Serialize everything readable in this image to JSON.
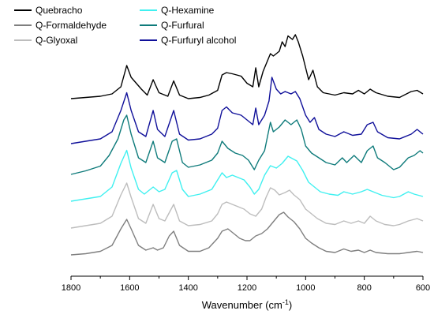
{
  "chart_data": {
    "type": "line",
    "title": "",
    "xlabel": "Wavenumber (cm",
    "xlabel_superscript": "-1",
    "xlabel_suffix": ")",
    "ylabel": "",
    "xlim": [
      1800,
      600
    ],
    "x_reversed": true,
    "grid": false,
    "legend": "top-left",
    "x_ticks": [
      1800,
      1600,
      1400,
      1200,
      1000,
      800,
      600
    ],
    "series": [
      {
        "name": "Quebracho",
        "color": "#000000",
        "offset": 0.0,
        "points": [
          [
            1800,
            0.02
          ],
          [
            1750,
            0.03
          ],
          [
            1700,
            0.04
          ],
          [
            1660,
            0.06
          ],
          [
            1630,
            0.12
          ],
          [
            1610,
            0.3
          ],
          [
            1595,
            0.2
          ],
          [
            1560,
            0.1
          ],
          [
            1540,
            0.05
          ],
          [
            1520,
            0.18
          ],
          [
            1500,
            0.07
          ],
          [
            1470,
            0.04
          ],
          [
            1450,
            0.17
          ],
          [
            1430,
            0.05
          ],
          [
            1400,
            0.02
          ],
          [
            1360,
            0.03
          ],
          [
            1330,
            0.05
          ],
          [
            1300,
            0.09
          ],
          [
            1285,
            0.22
          ],
          [
            1270,
            0.24
          ],
          [
            1250,
            0.23
          ],
          [
            1220,
            0.21
          ],
          [
            1200,
            0.15
          ],
          [
            1180,
            0.12
          ],
          [
            1170,
            0.28
          ],
          [
            1160,
            0.12
          ],
          [
            1145,
            0.25
          ],
          [
            1120,
            0.4
          ],
          [
            1110,
            0.38
          ],
          [
            1090,
            0.42
          ],
          [
            1080,
            0.5
          ],
          [
            1070,
            0.46
          ],
          [
            1060,
            0.55
          ],
          [
            1045,
            0.52
          ],
          [
            1035,
            0.56
          ],
          [
            1025,
            0.5
          ],
          [
            1010,
            0.38
          ],
          [
            990,
            0.18
          ],
          [
            975,
            0.26
          ],
          [
            960,
            0.12
          ],
          [
            940,
            0.07
          ],
          [
            900,
            0.05
          ],
          [
            870,
            0.07
          ],
          [
            840,
            0.06
          ],
          [
            820,
            0.09
          ],
          [
            800,
            0.06
          ],
          [
            780,
            0.1
          ],
          [
            760,
            0.07
          ],
          [
            720,
            0.04
          ],
          [
            680,
            0.03
          ],
          [
            640,
            0.08
          ],
          [
            620,
            0.09
          ],
          [
            600,
            0.06
          ]
        ]
      },
      {
        "name": "Q-Furfuryl alcohol",
        "color": "#10109a",
        "offset": 0.0,
        "points": [
          [
            1800,
            0.02
          ],
          [
            1750,
            0.04
          ],
          [
            1700,
            0.06
          ],
          [
            1660,
            0.12
          ],
          [
            1630,
            0.3
          ],
          [
            1610,
            0.45
          ],
          [
            1595,
            0.3
          ],
          [
            1570,
            0.12
          ],
          [
            1545,
            0.08
          ],
          [
            1520,
            0.3
          ],
          [
            1505,
            0.14
          ],
          [
            1480,
            0.08
          ],
          [
            1450,
            0.3
          ],
          [
            1430,
            0.1
          ],
          [
            1400,
            0.05
          ],
          [
            1360,
            0.06
          ],
          [
            1320,
            0.1
          ],
          [
            1300,
            0.15
          ],
          [
            1285,
            0.3
          ],
          [
            1270,
            0.33
          ],
          [
            1250,
            0.28
          ],
          [
            1220,
            0.26
          ],
          [
            1195,
            0.21
          ],
          [
            1180,
            0.18
          ],
          [
            1170,
            0.32
          ],
          [
            1160,
            0.18
          ],
          [
            1140,
            0.26
          ],
          [
            1125,
            0.38
          ],
          [
            1115,
            0.58
          ],
          [
            1100,
            0.48
          ],
          [
            1085,
            0.44
          ],
          [
            1070,
            0.46
          ],
          [
            1050,
            0.44
          ],
          [
            1035,
            0.46
          ],
          [
            1020,
            0.4
          ],
          [
            1000,
            0.26
          ],
          [
            985,
            0.2
          ],
          [
            970,
            0.24
          ],
          [
            955,
            0.14
          ],
          [
            930,
            0.1
          ],
          [
            900,
            0.08
          ],
          [
            870,
            0.12
          ],
          [
            840,
            0.09
          ],
          [
            810,
            0.1
          ],
          [
            790,
            0.18
          ],
          [
            770,
            0.2
          ],
          [
            755,
            0.12
          ],
          [
            720,
            0.07
          ],
          [
            680,
            0.06
          ],
          [
            640,
            0.1
          ],
          [
            620,
            0.14
          ],
          [
            600,
            0.1
          ]
        ]
      },
      {
        "name": "Q-Furfural",
        "color": "#0f7b7b",
        "offset": 0.0,
        "points": [
          [
            1800,
            0.02
          ],
          [
            1750,
            0.05
          ],
          [
            1700,
            0.09
          ],
          [
            1670,
            0.18
          ],
          [
            1640,
            0.32
          ],
          [
            1620,
            0.48
          ],
          [
            1610,
            0.52
          ],
          [
            1595,
            0.36
          ],
          [
            1570,
            0.16
          ],
          [
            1545,
            0.12
          ],
          [
            1520,
            0.3
          ],
          [
            1505,
            0.16
          ],
          [
            1480,
            0.12
          ],
          [
            1455,
            0.3
          ],
          [
            1440,
            0.32
          ],
          [
            1420,
            0.12
          ],
          [
            1400,
            0.08
          ],
          [
            1360,
            0.1
          ],
          [
            1320,
            0.14
          ],
          [
            1300,
            0.2
          ],
          [
            1285,
            0.3
          ],
          [
            1265,
            0.24
          ],
          [
            1240,
            0.2
          ],
          [
            1215,
            0.18
          ],
          [
            1195,
            0.14
          ],
          [
            1175,
            0.06
          ],
          [
            1160,
            0.14
          ],
          [
            1140,
            0.22
          ],
          [
            1120,
            0.46
          ],
          [
            1110,
            0.38
          ],
          [
            1090,
            0.42
          ],
          [
            1070,
            0.48
          ],
          [
            1050,
            0.44
          ],
          [
            1030,
            0.48
          ],
          [
            1015,
            0.4
          ],
          [
            1000,
            0.26
          ],
          [
            980,
            0.2
          ],
          [
            955,
            0.16
          ],
          [
            930,
            0.12
          ],
          [
            900,
            0.1
          ],
          [
            875,
            0.16
          ],
          [
            860,
            0.12
          ],
          [
            835,
            0.18
          ],
          [
            810,
            0.12
          ],
          [
            790,
            0.22
          ],
          [
            770,
            0.26
          ],
          [
            755,
            0.16
          ],
          [
            730,
            0.12
          ],
          [
            700,
            0.06
          ],
          [
            680,
            0.08
          ],
          [
            650,
            0.16
          ],
          [
            630,
            0.18
          ],
          [
            610,
            0.22
          ],
          [
            600,
            0.2
          ]
        ]
      },
      {
        "name": "Q-Hexamine",
        "color": "#40f0f0",
        "offset": 0.0,
        "points": [
          [
            1800,
            0.02
          ],
          [
            1750,
            0.04
          ],
          [
            1700,
            0.06
          ],
          [
            1660,
            0.14
          ],
          [
            1630,
            0.34
          ],
          [
            1610,
            0.45
          ],
          [
            1595,
            0.3
          ],
          [
            1570,
            0.12
          ],
          [
            1550,
            0.08
          ],
          [
            1520,
            0.14
          ],
          [
            1500,
            0.1
          ],
          [
            1480,
            0.12
          ],
          [
            1455,
            0.26
          ],
          [
            1440,
            0.28
          ],
          [
            1420,
            0.12
          ],
          [
            1400,
            0.06
          ],
          [
            1360,
            0.08
          ],
          [
            1320,
            0.12
          ],
          [
            1300,
            0.2
          ],
          [
            1285,
            0.26
          ],
          [
            1270,
            0.22
          ],
          [
            1250,
            0.24
          ],
          [
            1230,
            0.22
          ],
          [
            1210,
            0.2
          ],
          [
            1190,
            0.14
          ],
          [
            1175,
            0.08
          ],
          [
            1160,
            0.12
          ],
          [
            1140,
            0.24
          ],
          [
            1120,
            0.32
          ],
          [
            1100,
            0.3
          ],
          [
            1080,
            0.34
          ],
          [
            1060,
            0.4
          ],
          [
            1045,
            0.38
          ],
          [
            1030,
            0.36
          ],
          [
            1010,
            0.28
          ],
          [
            990,
            0.18
          ],
          [
            970,
            0.14
          ],
          [
            950,
            0.1
          ],
          [
            920,
            0.08
          ],
          [
            890,
            0.07
          ],
          [
            870,
            0.1
          ],
          [
            840,
            0.08
          ],
          [
            810,
            0.1
          ],
          [
            790,
            0.12
          ],
          [
            770,
            0.1
          ],
          [
            740,
            0.07
          ],
          [
            700,
            0.05
          ],
          [
            680,
            0.06
          ],
          [
            650,
            0.1
          ],
          [
            630,
            0.08
          ],
          [
            600,
            0.06
          ]
        ]
      },
      {
        "name": "Q-Glyoxal",
        "color": "#bdbdbd",
        "offset": 0.0,
        "points": [
          [
            1800,
            0.02
          ],
          [
            1750,
            0.04
          ],
          [
            1700,
            0.06
          ],
          [
            1660,
            0.12
          ],
          [
            1630,
            0.3
          ],
          [
            1610,
            0.4
          ],
          [
            1595,
            0.28
          ],
          [
            1570,
            0.1
          ],
          [
            1545,
            0.06
          ],
          [
            1520,
            0.22
          ],
          [
            1500,
            0.1
          ],
          [
            1480,
            0.08
          ],
          [
            1450,
            0.22
          ],
          [
            1430,
            0.08
          ],
          [
            1400,
            0.04
          ],
          [
            1360,
            0.05
          ],
          [
            1320,
            0.08
          ],
          [
            1300,
            0.14
          ],
          [
            1285,
            0.22
          ],
          [
            1270,
            0.24
          ],
          [
            1250,
            0.22
          ],
          [
            1230,
            0.2
          ],
          [
            1210,
            0.18
          ],
          [
            1190,
            0.14
          ],
          [
            1170,
            0.12
          ],
          [
            1150,
            0.18
          ],
          [
            1135,
            0.28
          ],
          [
            1120,
            0.36
          ],
          [
            1105,
            0.34
          ],
          [
            1090,
            0.3
          ],
          [
            1070,
            0.32
          ],
          [
            1055,
            0.34
          ],
          [
            1040,
            0.3
          ],
          [
            1020,
            0.26
          ],
          [
            1000,
            0.18
          ],
          [
            980,
            0.14
          ],
          [
            960,
            0.1
          ],
          [
            930,
            0.06
          ],
          [
            900,
            0.05
          ],
          [
            870,
            0.08
          ],
          [
            845,
            0.06
          ],
          [
            820,
            0.08
          ],
          [
            800,
            0.06
          ],
          [
            780,
            0.12
          ],
          [
            760,
            0.08
          ],
          [
            730,
            0.05
          ],
          [
            700,
            0.04
          ],
          [
            680,
            0.05
          ],
          [
            650,
            0.08
          ],
          [
            620,
            0.1
          ],
          [
            600,
            0.08
          ]
        ]
      },
      {
        "name": "Q-Formaldehyde",
        "color": "#7f7f7f",
        "offset": 0.0,
        "points": [
          [
            1800,
            0.02
          ],
          [
            1750,
            0.03
          ],
          [
            1700,
            0.05
          ],
          [
            1660,
            0.1
          ],
          [
            1630,
            0.24
          ],
          [
            1610,
            0.32
          ],
          [
            1595,
            0.24
          ],
          [
            1570,
            0.1
          ],
          [
            1545,
            0.06
          ],
          [
            1520,
            0.08
          ],
          [
            1505,
            0.06
          ],
          [
            1485,
            0.08
          ],
          [
            1465,
            0.18
          ],
          [
            1450,
            0.22
          ],
          [
            1430,
            0.1
          ],
          [
            1400,
            0.05
          ],
          [
            1360,
            0.05
          ],
          [
            1330,
            0.08
          ],
          [
            1300,
            0.16
          ],
          [
            1285,
            0.22
          ],
          [
            1265,
            0.24
          ],
          [
            1245,
            0.2
          ],
          [
            1225,
            0.16
          ],
          [
            1205,
            0.14
          ],
          [
            1190,
            0.14
          ],
          [
            1170,
            0.18
          ],
          [
            1150,
            0.2
          ],
          [
            1130,
            0.24
          ],
          [
            1110,
            0.3
          ],
          [
            1090,
            0.36
          ],
          [
            1075,
            0.38
          ],
          [
            1060,
            0.34
          ],
          [
            1040,
            0.3
          ],
          [
            1020,
            0.24
          ],
          [
            1000,
            0.16
          ],
          [
            980,
            0.12
          ],
          [
            955,
            0.08
          ],
          [
            930,
            0.05
          ],
          [
            900,
            0.04
          ],
          [
            870,
            0.07
          ],
          [
            845,
            0.05
          ],
          [
            820,
            0.06
          ],
          [
            800,
            0.04
          ],
          [
            780,
            0.06
          ],
          [
            760,
            0.04
          ],
          [
            720,
            0.03
          ],
          [
            680,
            0.03
          ],
          [
            650,
            0.04
          ],
          [
            620,
            0.05
          ],
          [
            600,
            0.04
          ]
        ]
      }
    ]
  }
}
